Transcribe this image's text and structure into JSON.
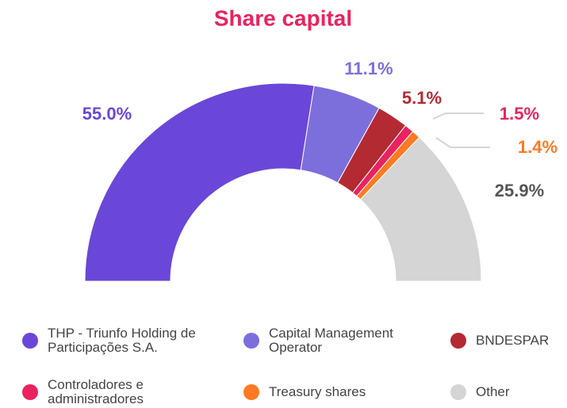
{
  "chart_data": {
    "type": "pie",
    "title": "Share capital",
    "categories": [
      "THP - Triunfo Holding de Participações S.A.",
      "Capital Management Operator",
      "BNDESPAR",
      "Controladores e administradores",
      "Treasury shares",
      "Other"
    ],
    "values": [
      55.0,
      11.1,
      5.1,
      1.5,
      1.4,
      25.9
    ],
    "value_labels": [
      "55.0%",
      "11.1%",
      "5.1%",
      "1.5%",
      "1.4%",
      "25.9%"
    ],
    "colors": [
      "#6a47d8",
      "#7c6fdc",
      "#b32a33",
      "#ea2260",
      "#ff7a22",
      "#d5d5d5"
    ],
    "label_colors": [
      "#6a47d8",
      "#7c6fdc",
      "#b32a33",
      "#ea2260",
      "#ff7a22",
      "#555555"
    ]
  }
}
